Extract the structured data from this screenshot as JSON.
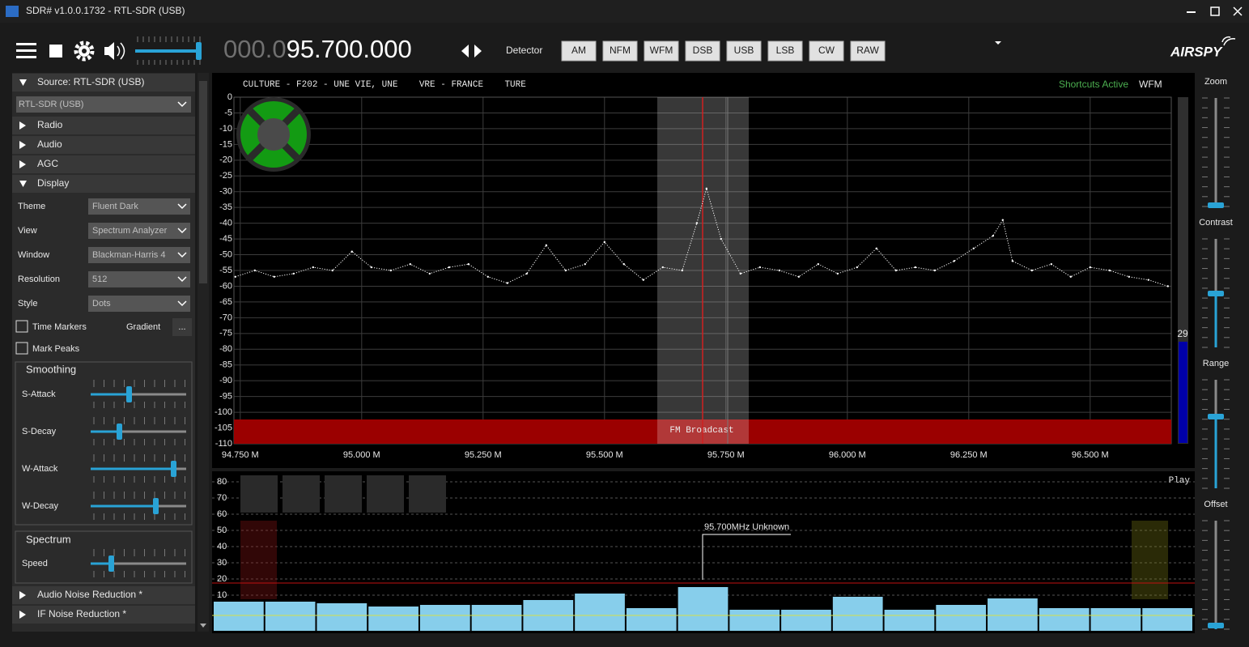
{
  "window": {
    "title": "SDR# v1.0.0.1732 - RTL-SDR (USB)"
  },
  "toolbar": {
    "frequency_prefix": "000.0",
    "frequency": "95.700.000",
    "detector_label": "Detector",
    "modes": [
      "AM",
      "NFM",
      "WFM",
      "DSB",
      "USB",
      "LSB",
      "CW",
      "RAW"
    ],
    "logo": "AIRSPY"
  },
  "sidebar": {
    "source": "Source: RTL-SDR (USB)",
    "device": "RTL-SDR (USB)",
    "sections": [
      "Radio",
      "Audio",
      "AGC"
    ],
    "display": "Display",
    "settings": [
      {
        "label": "Theme",
        "value": "Fluent Dark"
      },
      {
        "label": "View",
        "value": "Spectrum Analyzer"
      },
      {
        "label": "Window",
        "value": "Blackman-Harris 4"
      },
      {
        "label": "Resolution",
        "value": "512"
      },
      {
        "label": "Style",
        "value": "Dots"
      }
    ],
    "time_markers": "Time Markers",
    "gradient": "Gradient",
    "gradient_button": "...",
    "mark_peaks": "Mark Peaks",
    "smoothing": "Smoothing",
    "smoothing_sliders": [
      "S-Attack",
      "S-Decay",
      "W-Attack",
      "W-Decay"
    ],
    "spectrum": "Spectrum",
    "speed": "Speed",
    "footer_sections": [
      "Audio Noise Reduction *",
      "IF Noise Reduction *"
    ]
  },
  "right_panel": {
    "sliders": [
      "Zoom",
      "Contrast",
      "Range",
      "Offset"
    ]
  },
  "chart_data": [
    {
      "type": "scatter",
      "rds": "CULTURE - F202 - UNE VIE, UNE    VRE - FRANCE    TURE",
      "status": "Shortcuts Active",
      "mode": "WFM",
      "band_label": "FM Broadcast",
      "level": 29,
      "color": "#ffffff",
      "grid": true,
      "xlim": [
        94.737,
        96.667
      ],
      "ylim": [
        -110,
        0
      ],
      "xticks": [
        {
          "value": 94.75,
          "label": "94.750 M"
        },
        {
          "value": 95.0,
          "label": "95.000 M"
        },
        {
          "value": 95.25,
          "label": "95.250 M"
        },
        {
          "value": 95.5,
          "label": "95.500 M"
        },
        {
          "value": 95.75,
          "label": "95.750 M"
        },
        {
          "value": 96.0,
          "label": "96.000 M"
        },
        {
          "value": 96.25,
          "label": "96.250 M"
        },
        {
          "value": 96.5,
          "label": "96.500 M"
        }
      ],
      "yticks": [
        0,
        -5,
        -10,
        -15,
        -20,
        -25,
        -30,
        -35,
        -40,
        -45,
        -50,
        -55,
        -60,
        -65,
        -70,
        -75,
        -80,
        -85,
        -90,
        -95,
        -100,
        -105,
        -110
      ],
      "x": [
        94.74,
        94.78,
        94.82,
        94.86,
        94.9,
        94.94,
        94.98,
        95.02,
        95.06,
        95.1,
        95.14,
        95.18,
        95.22,
        95.26,
        95.3,
        95.34,
        95.38,
        95.42,
        95.46,
        95.5,
        95.54,
        95.58,
        95.62,
        95.66,
        95.69,
        95.71,
        95.74,
        95.78,
        95.82,
        95.86,
        95.9,
        95.94,
        95.98,
        96.02,
        96.06,
        96.1,
        96.14,
        96.18,
        96.22,
        96.26,
        96.3,
        96.32,
        96.34,
        96.38,
        96.42,
        96.46,
        96.5,
        96.54,
        96.58,
        96.62,
        96.66
      ],
      "values": [
        -57,
        -55,
        -57,
        -56,
        -54,
        -55,
        -49,
        -54,
        -55,
        -53,
        -56,
        -54,
        -53,
        -57,
        -59,
        -56,
        -47,
        -55,
        -53,
        -46,
        -53,
        -58,
        -54,
        -55,
        -40,
        -29,
        -45,
        -56,
        -54,
        -55,
        -57,
        -53,
        -56,
        -54,
        -48,
        -55,
        -54,
        -55,
        -52,
        -48,
        -44,
        -39,
        -52,
        -55,
        -53,
        -57,
        -54,
        -55,
        -57,
        -58,
        -60
      ]
    },
    {
      "type": "bar",
      "label": "Play",
      "annotation": "95.700MHz Unknown",
      "color": "#87ceeb",
      "ylim": [
        -12,
        85
      ],
      "yticks": [
        80,
        70,
        60,
        50,
        40,
        30,
        20,
        10
      ],
      "values": [
        6,
        6,
        5,
        3,
        4,
        4,
        7,
        11,
        2,
        15,
        1,
        1,
        9,
        1,
        4,
        8,
        2,
        2,
        2
      ]
    }
  ]
}
